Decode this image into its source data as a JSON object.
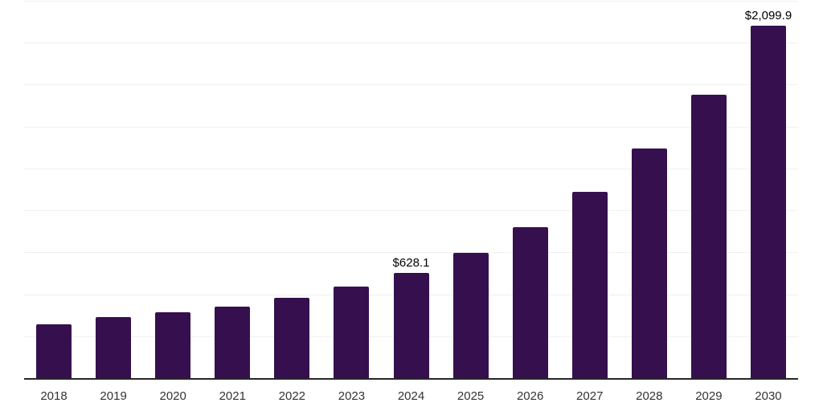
{
  "chart_data": {
    "type": "bar",
    "title": "",
    "xlabel": "",
    "ylabel": "",
    "categories": [
      "2018",
      "2019",
      "2020",
      "2021",
      "2022",
      "2023",
      "2024",
      "2025",
      "2026",
      "2027",
      "2028",
      "2029",
      "2030"
    ],
    "values": [
      322,
      364,
      392,
      426,
      479,
      546,
      628.1,
      747,
      900,
      1110,
      1368,
      1692,
      2099.9
    ],
    "data_labels": {
      "2024": "$628.1",
      "2030": "$2,099.9"
    },
    "ylim": [
      0,
      2250
    ],
    "gridline_step": 250,
    "grid": "horizontal light gridlines, no y-axis tick labels",
    "legend": "none"
  },
  "colors": {
    "bar": "#36104E",
    "axis_line": "#262626",
    "gridline": "#F0F0F0",
    "x_label_text": "#333333",
    "value_label_text": "#000000",
    "background": "#FFFFFF"
  }
}
